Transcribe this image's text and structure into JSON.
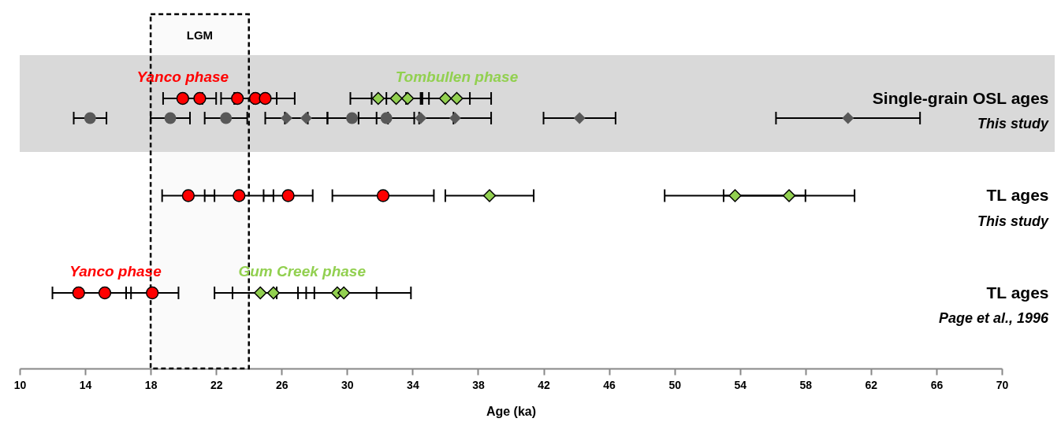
{
  "chart_data": {
    "type": "scatter",
    "orientation": "horizontal",
    "xlabel": "Age (ka)",
    "xlim": [
      10,
      70
    ],
    "xticks": [
      10,
      14,
      18,
      22,
      26,
      30,
      34,
      38,
      42,
      46,
      50,
      54,
      58,
      62,
      66,
      70
    ],
    "grid": false,
    "categories": [
      "Single-grain OSL ages",
      "TL ages",
      "TL ages"
    ],
    "series": [
      {
        "color": "#ff0000",
        "marker": "circle",
        "values": [
          19.96,
          20.3,
          13.6
        ],
        "errors": [
          1.2,
          1.6,
          1.6
        ]
      },
      {
        "color": "#ff0000",
        "marker": "circle",
        "values": [
          21.0,
          23.4,
          15.2
        ],
        "errors": [
          1.0,
          2.1,
          1.6
        ]
      },
      {
        "color": "#ff0000",
        "marker": "circle",
        "values": [
          23.3,
          26.4,
          18.1
        ],
        "errors": [
          1.0,
          1.5,
          1.6
        ]
      },
      {
        "color": "#ff0000",
        "marker": "circle",
        "values": [
          24.4,
          32.2,
          null
        ],
        "errors": [
          1.3,
          3.1,
          null
        ]
      },
      {
        "color": "#ff0000",
        "marker": "circle",
        "values": [
          25.0,
          null,
          null
        ],
        "errors": [
          1.8,
          null,
          null
        ]
      },
      {
        "color": "#92d050",
        "marker": "diamond",
        "values": [
          31.9,
          38.7,
          24.7
        ],
        "errors": [
          1.7,
          2.7,
          2.8
        ]
      },
      {
        "color": "#92d050",
        "marker": "diamond",
        "values": [
          33.0,
          53.7,
          25.5
        ],
        "errors": [
          1.5,
          4.3,
          2.5
        ]
      },
      {
        "color": "#92d050",
        "marker": "diamond",
        "values": [
          33.7,
          57.0,
          29.4
        ],
        "errors": [
          1.3,
          4.0,
          2.4
        ]
      },
      {
        "color": "#92d050",
        "marker": "diamond",
        "values": [
          36.0,
          null,
          29.8
        ],
        "errors": [
          1.5,
          null,
          4.1
        ]
      },
      {
        "color": "#92d050",
        "marker": "diamond",
        "values": [
          36.7,
          null,
          null
        ],
        "errors": [
          2.1,
          null,
          null
        ]
      },
      {
        "color": "#595959",
        "marker": "circle",
        "values": [
          14.3,
          null,
          null
        ],
        "errors": [
          1.0,
          null,
          null
        ]
      },
      {
        "color": "#595959",
        "marker": "circle",
        "values": [
          19.2,
          null,
          null
        ],
        "errors": [
          1.2,
          null,
          null
        ]
      },
      {
        "color": "#595959",
        "marker": "circle",
        "values": [
          22.6,
          null,
          null
        ],
        "errors": [
          1.3,
          null,
          null
        ]
      },
      {
        "color": "#595959",
        "marker": "circle",
        "values": [
          30.3,
          null,
          null
        ],
        "errors": [
          1.5,
          null,
          null
        ]
      },
      {
        "color": "#595959",
        "marker": "circle",
        "values": [
          32.4,
          null,
          null
        ],
        "errors": [
          1.7,
          null,
          null
        ]
      },
      {
        "color": "#595959",
        "marker": "diamond",
        "values": [
          26.3,
          null,
          null
        ],
        "errors": [
          1.3,
          null,
          null
        ]
      },
      {
        "color": "#595959",
        "marker": "diamond",
        "values": [
          27.5,
          null,
          null
        ],
        "errors": [
          1.3,
          null,
          null
        ]
      },
      {
        "color": "#595959",
        "marker": "diamond",
        "values": [
          34.5,
          null,
          null
        ],
        "errors": [
          2.0,
          null,
          null
        ]
      },
      {
        "color": "#595959",
        "marker": "diamond",
        "values": [
          36.6,
          null,
          null
        ],
        "errors": [
          2.2,
          null,
          null
        ]
      },
      {
        "color": "#595959",
        "marker": "diamond",
        "values": [
          44.2,
          null,
          null
        ],
        "errors": [
          2.2,
          null,
          null
        ]
      },
      {
        "color": "#595959",
        "marker": "diamond",
        "values": [
          60.6,
          null,
          null
        ],
        "errors": [
          4.4,
          null,
          null
        ]
      }
    ],
    "bands": [
      {
        "axis": "y",
        "from": "Single-grain OSL ages",
        "to": "Single-grain OSL ages",
        "color": "#d9d9d9"
      },
      {
        "axis": "x",
        "from": 18,
        "to": 24,
        "label": "LGM",
        "color": "#fafafa"
      }
    ],
    "annotations": [
      {
        "text": "Yanco phase",
        "x": 19.96,
        "y": "Single-grain OSL ages"
      },
      {
        "text": "Tombullen phase",
        "x": 36.7,
        "y": "Single-grain OSL ages"
      },
      "This study",
      "This study",
      "Page et al., 1996",
      "Yanco phase",
      "Gum Creek phase"
    ]
  }
}
